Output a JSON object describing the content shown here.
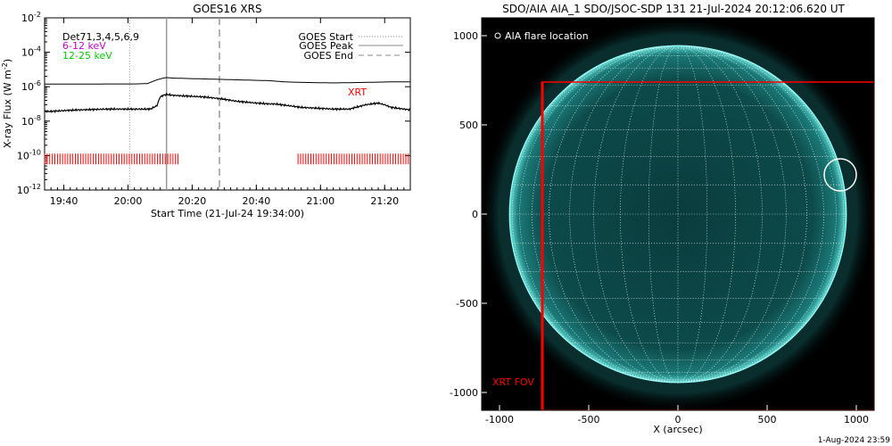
{
  "footer": {
    "timestamp": "1-Aug-2024 23:59"
  },
  "chart_data": [
    {
      "type": "line",
      "title": "GOES16 XRS",
      "xlabel": "Start Time (21-Jul-24 19:34:00)",
      "ylabel": "X-ray Flux (W m",
      "ylabel_sup": "-2",
      "ylabel_close": ")",
      "xlim_minutes_after_1934": [
        0,
        114
      ],
      "ylim_log10": [
        -12,
        -2
      ],
      "y_scale": "log",
      "x_tick_labels": [
        "19:40",
        "20:00",
        "20:20",
        "20:40",
        "21:00",
        "21:20"
      ],
      "x_tick_minutes": [
        6,
        26,
        46,
        66,
        86,
        106
      ],
      "y_tick_labels": [
        {
          "base": "10",
          "exp": "-2",
          "log": -2
        },
        {
          "base": "10",
          "exp": "-4",
          "log": -4
        },
        {
          "base": "10",
          "exp": "-6",
          "log": -6
        },
        {
          "base": "10",
          "exp": "-8",
          "log": -8
        },
        {
          "base": "10",
          "exp": "-10",
          "log": -10
        },
        {
          "base": "10",
          "exp": "-12",
          "log": -12
        }
      ],
      "legend_left": [
        {
          "text": "Det71,3,4,5,6,9",
          "color": "#000000"
        },
        {
          "text": "6-12 keV",
          "color": "#cc00cc"
        },
        {
          "text": "12-25 keV",
          "color": "#00cc00"
        }
      ],
      "legend_right": [
        {
          "text": "GOES Start",
          "style": "dotted"
        },
        {
          "text": "GOES Peak",
          "style": "solid"
        },
        {
          "text": "GOES End",
          "style": "dashed"
        }
      ],
      "xrt_label": "XRT",
      "xrt_color": "#ff0000",
      "goes_start_minute": 26.5,
      "goes_peak_minute": 38,
      "goes_end_minute": 54.5,
      "series": [
        {
          "minutes": [
            0,
            10,
            20,
            28,
            32,
            35,
            37,
            38,
            40,
            50,
            60,
            70,
            75,
            80,
            90,
            100,
            108,
            114
          ],
          "log_flux": [
            -5.85,
            -5.85,
            -5.84,
            -5.84,
            -5.82,
            -5.6,
            -5.5,
            -5.47,
            -5.5,
            -5.55,
            -5.6,
            -5.65,
            -5.72,
            -5.75,
            -5.78,
            -5.75,
            -5.72,
            -5.72
          ]
        },
        {
          "minutes": [
            0,
            10,
            20,
            28,
            33,
            35,
            36,
            37,
            38,
            40,
            45,
            50,
            55,
            60,
            66,
            70,
            72,
            80,
            90,
            95,
            100,
            104,
            106,
            108,
            114
          ],
          "log_flux": [
            -7.45,
            -7.35,
            -7.3,
            -7.3,
            -7.3,
            -7.1,
            -6.6,
            -6.5,
            -6.45,
            -6.5,
            -6.55,
            -6.6,
            -6.7,
            -6.85,
            -6.95,
            -7.0,
            -7.0,
            -7.2,
            -7.3,
            -7.3,
            -7.05,
            -6.95,
            -7.05,
            -7.2,
            -7.35
          ]
        }
      ],
      "xrt_coverage_minutes": [
        [
          0,
          42
        ],
        [
          79,
          114
        ]
      ]
    },
    {
      "type": "image",
      "title": "SDO/AIA AIA_1 SDO/JSOC-SDP 131 21-Jul-2024 20:12:06.620 UT",
      "xlabel": "X (arcsec)",
      "xlim": [
        -1100,
        1100
      ],
      "ylim": [
        -1100,
        1100
      ],
      "x_tick_labels": [
        "-1000",
        "-500",
        "0",
        "500",
        "1000"
      ],
      "x_tick_values": [
        -1000,
        -500,
        0,
        500,
        1000
      ],
      "y_tick_labels": [
        "1000",
        "500",
        "0",
        "-500",
        "-1000"
      ],
      "y_tick_values": [
        1000,
        500,
        0,
        -500,
        -1000
      ],
      "legend": "AIA flare location",
      "fov_label": "XRT FOV",
      "solar_radius_arcsec": 944,
      "flare_location": {
        "x": 910,
        "y": 220,
        "radius": 90
      },
      "xrt_fov": {
        "x0": -760,
        "x1": 1100,
        "y0": 740,
        "y1": -1100
      },
      "colors": {
        "disk": "#0b4a4a",
        "fov": "#ff0000",
        "grid": "#ffffff"
      }
    }
  ]
}
